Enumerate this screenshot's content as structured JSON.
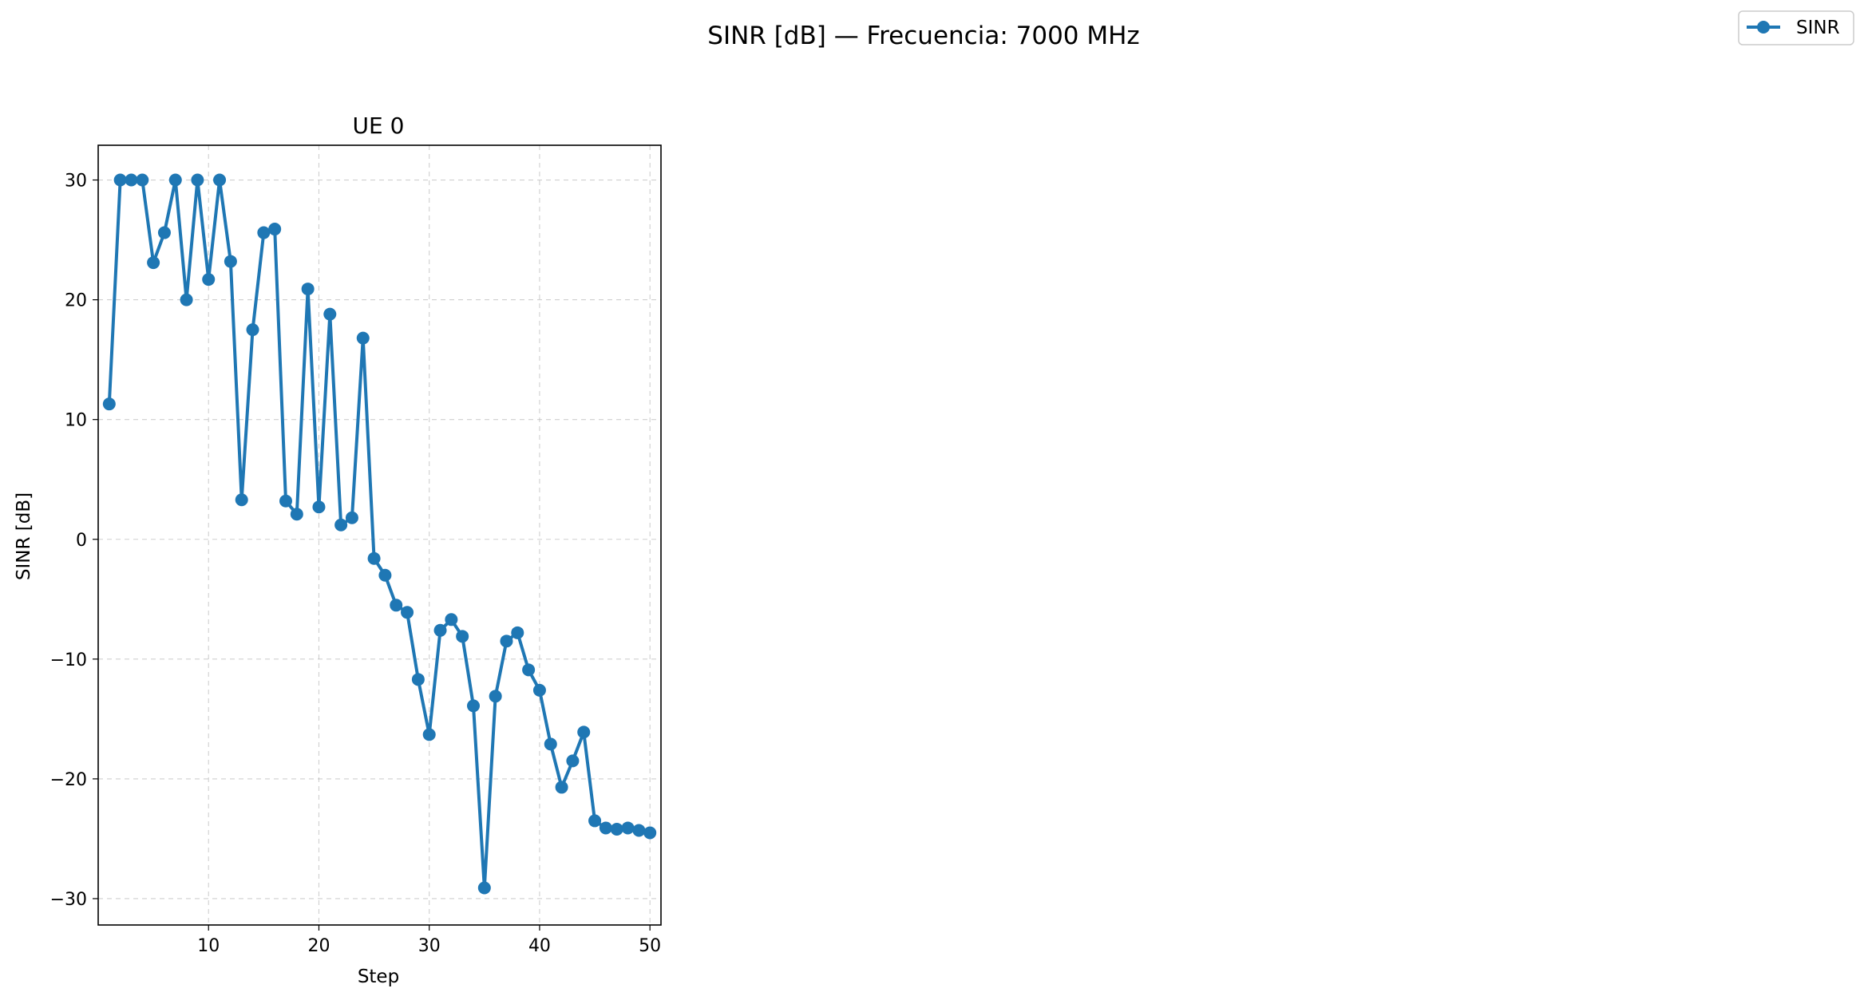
{
  "figure": {
    "title": "SINR [dB] — Frecuencia: 7000 MHz",
    "legend": {
      "placement": "top-right",
      "entries": [
        "SINR"
      ]
    }
  },
  "colors": {
    "series": "#1f77b4",
    "frame": "#000000",
    "grid": "#b0b0b0"
  },
  "chart_data": {
    "type": "line",
    "title": "UE 0",
    "xlabel": "Step",
    "ylabel": "SINR [dB]",
    "xlim": [
      0,
      51
    ],
    "ylim": [
      -32.2,
      32.9
    ],
    "xticks": [
      10,
      20,
      30,
      40,
      50
    ],
    "yticks": [
      -30,
      -20,
      -10,
      0,
      10,
      20,
      30
    ],
    "grid": true,
    "marker": "circle",
    "series": [
      {
        "name": "SINR",
        "x": [
          1,
          2,
          3,
          4,
          5,
          6,
          7,
          8,
          9,
          10,
          11,
          12,
          13,
          14,
          15,
          16,
          17,
          18,
          19,
          20,
          21,
          22,
          23,
          24,
          25,
          26,
          27,
          28,
          29,
          30,
          31,
          32,
          33,
          34,
          35,
          36,
          37,
          38,
          39,
          40,
          41,
          42,
          43,
          44,
          45,
          46,
          47,
          48,
          49,
          50
        ],
        "y": [
          11.3,
          30,
          30,
          30,
          23.1,
          25.6,
          30,
          20,
          30,
          21.7,
          30,
          23.2,
          3.3,
          17.5,
          25.6,
          25.9,
          3.2,
          2.1,
          20.9,
          2.7,
          18.8,
          1.2,
          1.8,
          16.8,
          -1.6,
          -3,
          -5.5,
          -6.1,
          -11.7,
          -16.3,
          -7.6,
          -6.7,
          -8.1,
          -13.9,
          -29.1,
          -13.1,
          -8.5,
          -7.8,
          -10.9,
          -12.6,
          -17.1,
          -20.7,
          -18.5,
          -16.1,
          -23.5,
          -24.1,
          -24.2,
          -24.1,
          -24.3,
          -24.5
        ]
      }
    ]
  }
}
